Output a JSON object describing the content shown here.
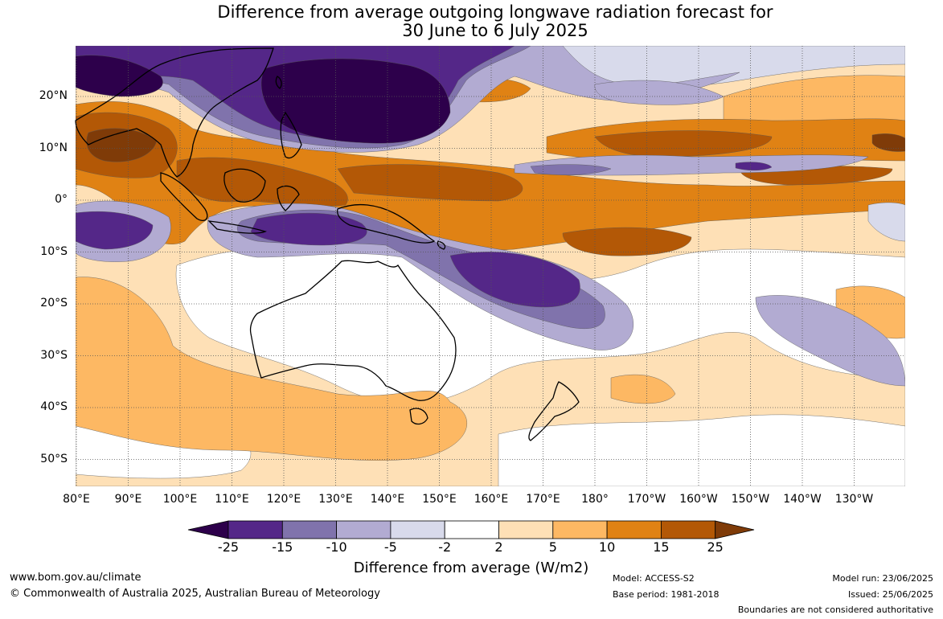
{
  "title": {
    "line1": "Difference from average outgoing longwave radiation forecast for",
    "line2": "30 June to 6 July 2025"
  },
  "map": {
    "lat_labels": [
      "20°N",
      "10°N",
      "0°",
      "10°S",
      "20°S",
      "30°S",
      "40°S",
      "50°S"
    ],
    "lon_labels": [
      "80°E",
      "90°E",
      "100°E",
      "110°E",
      "120°E",
      "130°E",
      "140°E",
      "150°E",
      "160°E",
      "170°E",
      "180°",
      "170°W",
      "160°W",
      "150°W",
      "140°W",
      "130°W"
    ],
    "colors": {
      "minus25": "#2d004b",
      "minus15": "#542788",
      "minus10": "#8073ac",
      "minus5": "#b2abd2",
      "minus2": "#d8daeb",
      "neutral": "#ffffff",
      "plus2": "#fee0b6",
      "plus5": "#fdb863",
      "plus10": "#e08214",
      "plus15": "#b35806",
      "plus25": "#7f3b08"
    }
  },
  "colorbar": {
    "ticks": [
      "-25",
      "-15",
      "-10",
      "-5",
      "-2",
      "2",
      "5",
      "10",
      "15",
      "25"
    ],
    "label": "Difference from average (W/m2)"
  },
  "footer": {
    "website": "www.bom.gov.au/climate",
    "copyright": "© Commonwealth of Australia 2025, Australian Bureau of Meteorology",
    "model": "Model: ACCESS-S2",
    "base_period": "Base period: 1981-2018",
    "model_run": "Model run: 23/06/2025",
    "issued": "Issued: 25/06/2025",
    "disclaimer": "Boundaries are not considered authoritative"
  }
}
